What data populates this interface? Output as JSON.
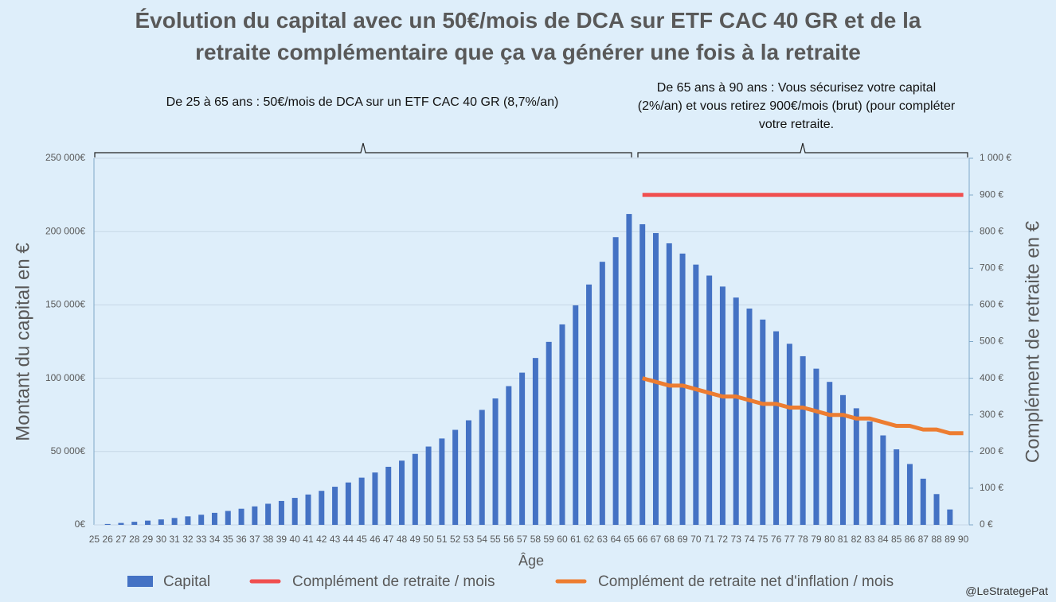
{
  "chart_data": {
    "type": "bar_line",
    "title": "Évolution du capital avec un 50€/mois de DCA sur ETF CAC 40 GR et de la retraite complémentaire que ça va générer une fois à la retraite",
    "annotations": [
      "De 25 à 65 ans : 50€/mois de DCA sur un ETF CAC 40 GR (8,7%/an)",
      "De 65 ans à 90 ans : Vous sécurisez votre capital (2%/an) et vous retirez 900€/mois (brut) (pour compléter votre retraite."
    ],
    "credit": "@LeStrategePat",
    "x_label": "Âge",
    "y_label": "Montant du capital en €",
    "y2_label": "Complément de retraite en €",
    "categories": [
      "25",
      "26",
      "27",
      "28",
      "29",
      "30",
      "31",
      "32",
      "33",
      "34",
      "35",
      "36",
      "37",
      "38",
      "39",
      "40",
      "41",
      "42",
      "43",
      "44",
      "45",
      "46",
      "47",
      "48",
      "49",
      "50",
      "51",
      "52",
      "53",
      "54",
      "55",
      "56",
      "57",
      "58",
      "59",
      "60",
      "61",
      "62",
      "63",
      "64",
      "65",
      "66",
      "67",
      "68",
      "69",
      "70",
      "71",
      "72",
      "73",
      "74",
      "75",
      "76",
      "77",
      "78",
      "79",
      "80",
      "81",
      "82",
      "83",
      "84",
      "85",
      "86",
      "87",
      "88",
      "89",
      "90"
    ],
    "series": [
      {
        "name": "Capital",
        "type": "bar",
        "color": "#4472c4",
        "values": [
          0,
          600,
          1300,
          2100,
          2900,
          3700,
          4700,
          5800,
          6900,
          8200,
          9500,
          11000,
          12600,
          14400,
          16300,
          18400,
          20700,
          23200,
          26000,
          28900,
          32200,
          35700,
          39600,
          43800,
          48400,
          53400,
          58900,
          64800,
          71300,
          78400,
          86200,
          94600,
          103800,
          113800,
          124800,
          136700,
          149700,
          163900,
          179400,
          196200,
          212000,
          205000,
          199000,
          192000,
          185000,
          177500,
          170000,
          162500,
          155000,
          147500,
          140000,
          132000,
          123500,
          115000,
          106500,
          97500,
          88500,
          79500,
          70500,
          61000,
          51500,
          41500,
          31500,
          21000,
          10500,
          0
        ]
      },
      {
        "name": "Complément de retraite / mois",
        "type": "line",
        "axis": "y2",
        "color": "#f04f4f",
        "values": [
          null,
          null,
          null,
          null,
          null,
          null,
          null,
          null,
          null,
          null,
          null,
          null,
          null,
          null,
          null,
          null,
          null,
          null,
          null,
          null,
          null,
          null,
          null,
          null,
          null,
          null,
          null,
          null,
          null,
          null,
          null,
          null,
          null,
          null,
          null,
          null,
          null,
          null,
          null,
          null,
          null,
          900,
          900,
          900,
          900,
          900,
          900,
          900,
          900,
          900,
          900,
          900,
          900,
          900,
          900,
          900,
          900,
          900,
          900,
          900,
          900,
          900,
          900,
          900,
          900,
          900
        ]
      },
      {
        "name": "Complément de retraite net d'inflation / mois",
        "type": "line",
        "axis": "y2",
        "color": "#ed7d31",
        "values": [
          null,
          null,
          null,
          null,
          null,
          null,
          null,
          null,
          null,
          null,
          null,
          null,
          null,
          null,
          null,
          null,
          null,
          null,
          null,
          null,
          null,
          null,
          null,
          null,
          null,
          null,
          null,
          null,
          null,
          null,
          null,
          null,
          null,
          null,
          null,
          null,
          null,
          null,
          null,
          null,
          null,
          400,
          390,
          380,
          380,
          370,
          360,
          350,
          350,
          340,
          330,
          330,
          320,
          320,
          310,
          300,
          300,
          290,
          290,
          280,
          270,
          270,
          260,
          260,
          250,
          250
        ]
      }
    ],
    "ylim": [
      0,
      250000
    ],
    "yticks": [
      {
        "value": 0,
        "label": "0€"
      },
      {
        "value": 50000,
        "label": "50 000€"
      },
      {
        "value": 100000,
        "label": "100 000€"
      },
      {
        "value": 150000,
        "label": "150 000€"
      },
      {
        "value": 200000,
        "label": "200 000€"
      },
      {
        "value": 250000,
        "label": "250 000€"
      }
    ],
    "y2lim": [
      0,
      1000
    ],
    "y2ticks": [
      {
        "value": 0,
        "label": "0 €"
      },
      {
        "value": 100,
        "label": "100 €"
      },
      {
        "value": 200,
        "label": "200 €"
      },
      {
        "value": 300,
        "label": "300 €"
      },
      {
        "value": 400,
        "label": "400 €"
      },
      {
        "value": 500,
        "label": "500 €"
      },
      {
        "value": 600,
        "label": "600 €"
      },
      {
        "value": 700,
        "label": "700 €"
      },
      {
        "value": 800,
        "label": "800 €"
      },
      {
        "value": 900,
        "label": "900 €"
      },
      {
        "value": 1000,
        "label": "1 000 €"
      }
    ],
    "grid": true,
    "legend": "bottom"
  }
}
